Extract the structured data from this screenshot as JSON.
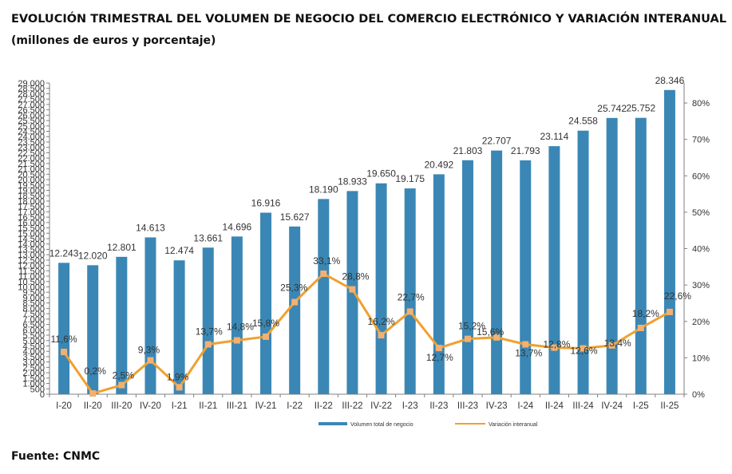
{
  "header": {
    "title": "EVOLUCIÓN TRIMESTRAL DEL VOLUMEN DE NEGOCIO DEL COMERCIO ELECTRÓNICO Y VARIACIÓN INTERANUAL",
    "subtitle": "(millones de euros y porcentaje)"
  },
  "footer": {
    "source": "Fuente: CNMC"
  },
  "colors": {
    "bar": "#3a87b5",
    "line": "#f0a030",
    "marker": "#f4b070",
    "axis": "#808080",
    "text": "#333333"
  },
  "chart_data": {
    "type": "bar",
    "categories": [
      "I-20",
      "II-20",
      "III-20",
      "IV-20",
      "I-21",
      "II-21",
      "III-21",
      "IV-21",
      "I-22",
      "II-22",
      "III-22",
      "IV-22",
      "I-23",
      "II-23",
      "III-23",
      "IV-23",
      "I-24",
      "II-24",
      "III-24",
      "IV-24",
      "I-25",
      "II-25"
    ],
    "series": [
      {
        "name": "Volumen total de negocio",
        "type": "bar",
        "axis": "left",
        "values": [
          12243,
          12020,
          12801,
          14613,
          12474,
          13661,
          14696,
          16916,
          15627,
          18190,
          18933,
          19650,
          19175,
          20492,
          21803,
          22707,
          21793,
          23114,
          24558,
          25742,
          25752,
          28346
        ],
        "labels": [
          "12.243",
          "12.020",
          "12.801",
          "14.613",
          "12.474",
          "13.661",
          "14.696",
          "16.916",
          "15.627",
          "18.190",
          "18.933",
          "19.650",
          "19.175",
          "20.492",
          "21.803",
          "22.707",
          "21.793",
          "23.114",
          "24.558",
          "25.742",
          "25.752",
          "28.346"
        ]
      },
      {
        "name": "Variación interanual",
        "type": "line",
        "axis": "right",
        "values": [
          11.6,
          0.2,
          2.5,
          9.3,
          1.9,
          13.7,
          14.8,
          15.8,
          25.3,
          33.1,
          28.8,
          16.2,
          22.7,
          12.7,
          15.2,
          15.6,
          13.7,
          12.8,
          12.6,
          13.4,
          18.2,
          22.6
        ],
        "labels": [
          "11,6%",
          "0,2%",
          "2,5%",
          "9,3%",
          "1,9%",
          "13,7%",
          "14,8%",
          "15,8%",
          "25,3%",
          "33,1%",
          "28,8%",
          "16,2%",
          "22,7%",
          "12,7%",
          "15,2%",
          "15,6%",
          "13,7%",
          "12,8%",
          "12,6%",
          "13,4%",
          "18,2%",
          "22,6%"
        ]
      }
    ],
    "y_left": {
      "range": [
        0,
        29000
      ],
      "ticks": [
        0,
        500,
        1000,
        1500,
        2000,
        2500,
        3000,
        3500,
        4000,
        4500,
        5000,
        5500,
        6000,
        6500,
        7000,
        7500,
        8000,
        8500,
        9000,
        9500,
        10000,
        10500,
        11000,
        11500,
        12000,
        12500,
        13000,
        13500,
        14000,
        14500,
        15000,
        15500,
        16000,
        16500,
        17000,
        17500,
        18000,
        18500,
        19000,
        19500,
        20000,
        20500,
        21000,
        21500,
        22000,
        22500,
        23000,
        23500,
        24000,
        24500,
        25000,
        25500,
        26000,
        26500,
        27000,
        27500,
        28000,
        28500,
        29000
      ],
      "tick_labels": [
        "0",
        "500",
        "1.000",
        "1.500",
        "2.000",
        "2.500",
        "3.000",
        "3.500",
        "4.000",
        "4.500",
        "5.000",
        "5.500",
        "6.000",
        "6.500",
        "7.000",
        "7.500",
        "8.000",
        "8.500",
        "9.000",
        "9.500",
        "10.000",
        "10.500",
        "11.000",
        "11.500",
        "12.000",
        "12.500",
        "13.000",
        "13.500",
        "14.000",
        "14.500",
        "15.000",
        "15.500",
        "16.000",
        "16.500",
        "17.000",
        "17.500",
        "18.000",
        "18.500",
        "19.000",
        "19.500",
        "20.000",
        "20.500",
        "21.000",
        "21.500",
        "22.000",
        "22.500",
        "23.000",
        "23.500",
        "24.000",
        "24.500",
        "25.000",
        "25.500",
        "26.000",
        "26.500",
        "27.000",
        "27.500",
        "28.000",
        "28.500",
        "29.000"
      ]
    },
    "y_right": {
      "range": [
        0,
        85.5
      ],
      "ticks": [
        0,
        10,
        20,
        30,
        40,
        50,
        60,
        70,
        80
      ],
      "tick_labels": [
        "0%",
        "10%",
        "20%",
        "30%",
        "40%",
        "50%",
        "60%",
        "70%",
        "80%"
      ]
    },
    "grid": false,
    "legend": "bottom"
  }
}
